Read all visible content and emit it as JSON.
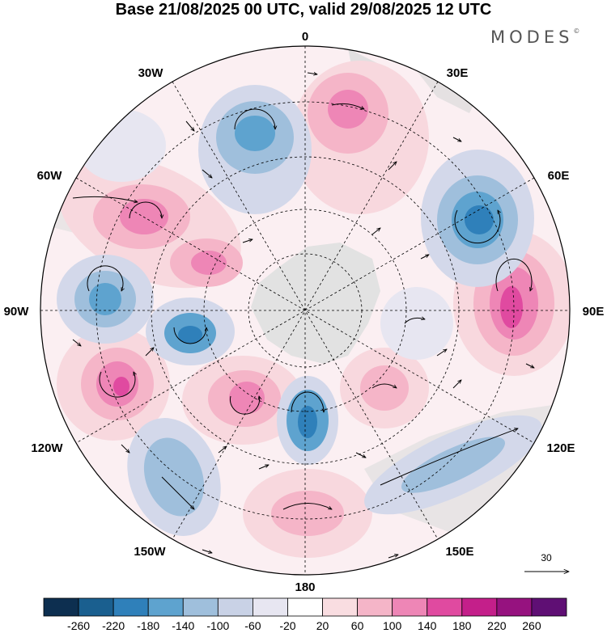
{
  "title": "Base 21/08/2025 00 UTC, valid 29/08/2025 12 UTC",
  "brand": "MODES",
  "brand_mark": "©",
  "longitude_labels": [
    "0",
    "30E",
    "60E",
    "90E",
    "120E",
    "150E",
    "180",
    "150W",
    "120W",
    "90W",
    "60W",
    "30W"
  ],
  "vector_reference": "30",
  "colorbar": {
    "tick_labels": [
      "-260",
      "-220",
      "-180",
      "-140",
      "-100",
      "-60",
      "-20",
      "20",
      "60",
      "100",
      "140",
      "180",
      "220",
      "260"
    ],
    "colors": [
      "#0d2f50",
      "#1a5f8f",
      "#2f80ba",
      "#5ea3cf",
      "#9fbfdc",
      "#c9d2e6",
      "#e7e6f1",
      "#ffffff",
      "#f9dde1",
      "#f5b5c8",
      "#ee86b6",
      "#e04aa0",
      "#c41f8a",
      "#96127f",
      "#5f0f74"
    ]
  },
  "colors": {
    "negative_strong": "#2b77b3",
    "negative_mid": "#7fabd4",
    "negative_weak": "#d3d8ea",
    "positive_weak": "#f8d8de",
    "positive_mid": "#f2a3c2",
    "positive_strong": "#e04aa0",
    "land": "#dcdcdc"
  }
}
